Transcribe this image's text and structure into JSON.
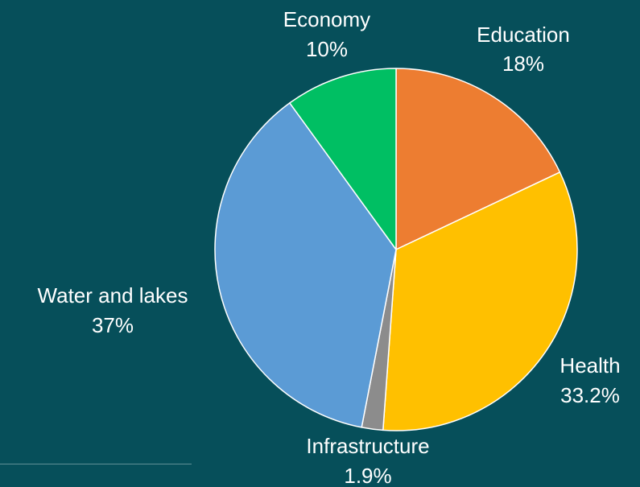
{
  "chart_data": {
    "type": "pie",
    "start_angle_deg": 0,
    "direction": "clockwise",
    "slices": [
      {
        "label": "Education",
        "value": 18,
        "value_label": "18%",
        "color": "#ed7d31"
      },
      {
        "label": "Health",
        "value": 33.2,
        "value_label": "33.2%",
        "color": "#ffc000"
      },
      {
        "label": "Infrastructure",
        "value": 1.9,
        "value_label": "1.9%",
        "color": "#8c8c8c"
      },
      {
        "label": "Water and lakes",
        "value": 37,
        "value_label": "37%",
        "color": "#5b9bd5"
      },
      {
        "label": "Economy",
        "value": 10,
        "value_label": "10%",
        "color": "#00bf63"
      }
    ],
    "background_color": "#064f5a",
    "label_color": "#ffffff",
    "legend": "none"
  }
}
